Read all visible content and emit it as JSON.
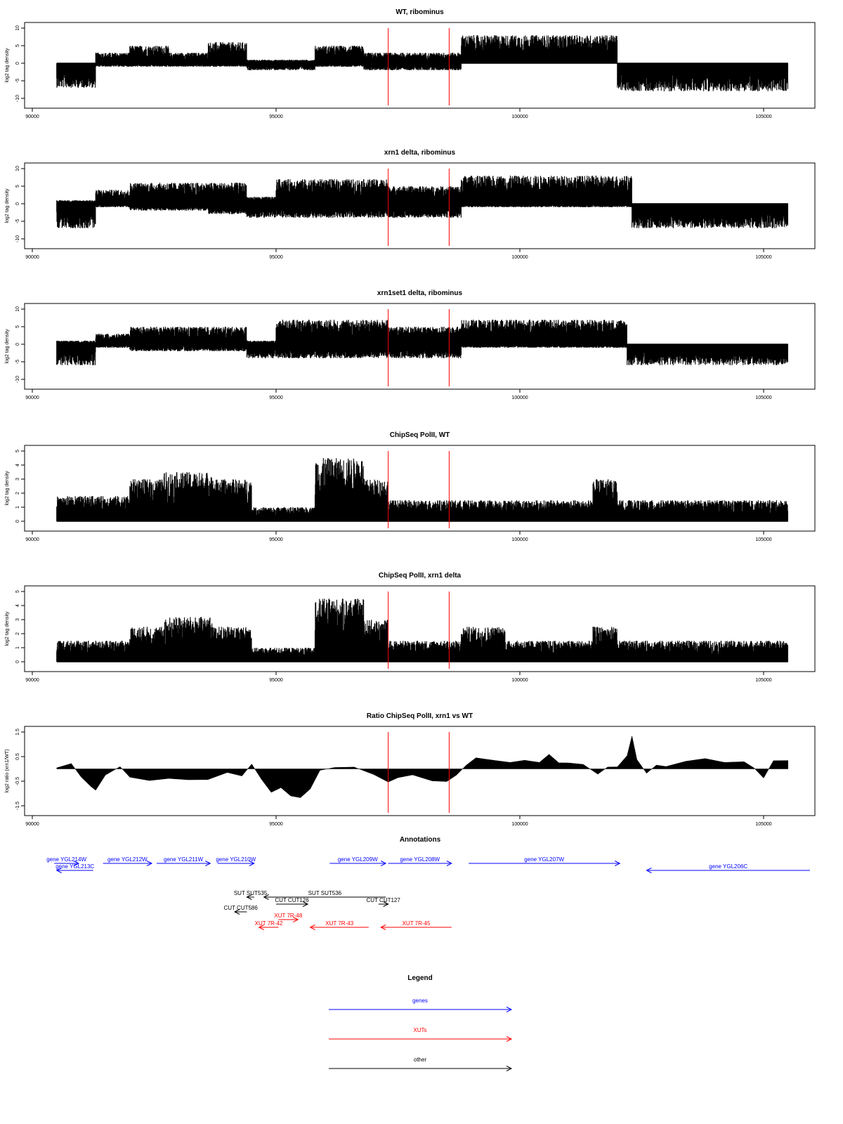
{
  "chart_data": [
    {
      "type": "bar",
      "title": "WT, ribominus",
      "ylabel": "log2 tag density",
      "xlim": [
        90000,
        105500
      ],
      "ylim": [
        -10,
        10
      ],
      "yticks": [
        "-10",
        "-5",
        "0",
        "5",
        "10"
      ],
      "xticks": [
        "90000",
        "95000",
        "100000",
        "105000"
      ],
      "markers": [
        97300,
        98550
      ],
      "profile": [
        {
          "from": 90500,
          "to": 91300,
          "top": 0,
          "bottom": -7
        },
        {
          "from": 91300,
          "to": 92000,
          "top": 3,
          "bottom": -1
        },
        {
          "from": 92000,
          "to": 92800,
          "top": 5,
          "bottom": -1
        },
        {
          "from": 92800,
          "to": 93600,
          "top": 3,
          "bottom": -1
        },
        {
          "from": 93600,
          "to": 94400,
          "top": 6,
          "bottom": -1
        },
        {
          "from": 94400,
          "to": 95800,
          "top": 1,
          "bottom": -2
        },
        {
          "from": 95800,
          "to": 96800,
          "top": 5,
          "bottom": -1
        },
        {
          "from": 96800,
          "to": 98800,
          "top": 3,
          "bottom": -2
        },
        {
          "from": 98800,
          "to": 102000,
          "top": 8,
          "bottom": 0
        },
        {
          "from": 102000,
          "to": 105500,
          "top": 0,
          "bottom": -8
        }
      ]
    },
    {
      "type": "bar",
      "title": "xrn1 delta, ribominus",
      "ylabel": "log2 tag density",
      "xlim": [
        90000,
        105500
      ],
      "ylim": [
        -10,
        10
      ],
      "yticks": [
        "-10",
        "-5",
        "0",
        "5",
        "10"
      ],
      "xticks": [
        "90000",
        "95000",
        "100000",
        "105000"
      ],
      "markers": [
        97300,
        98550
      ],
      "profile": [
        {
          "from": 90500,
          "to": 91300,
          "top": 1,
          "bottom": -7
        },
        {
          "from": 91300,
          "to": 92000,
          "top": 4,
          "bottom": -1
        },
        {
          "from": 92000,
          "to": 93600,
          "top": 6,
          "bottom": -2
        },
        {
          "from": 93600,
          "to": 94400,
          "top": 6,
          "bottom": -3
        },
        {
          "from": 94400,
          "to": 95000,
          "top": 2,
          "bottom": -4
        },
        {
          "from": 95000,
          "to": 97300,
          "top": 7,
          "bottom": -4
        },
        {
          "from": 97300,
          "to": 98800,
          "top": 5,
          "bottom": -4
        },
        {
          "from": 98800,
          "to": 102300,
          "top": 8,
          "bottom": -1
        },
        {
          "from": 102300,
          "to": 105500,
          "top": 0,
          "bottom": -7
        }
      ]
    },
    {
      "type": "bar",
      "title": "xrn1set1 delta, ribominus",
      "ylabel": "log2 tag density",
      "xlim": [
        90000,
        105500
      ],
      "ylim": [
        -10,
        10
      ],
      "yticks": [
        "-10",
        "-5",
        "0",
        "5",
        "10"
      ],
      "xticks": [
        "90000",
        "95000",
        "100000",
        "105000"
      ],
      "markers": [
        97300,
        98550
      ],
      "profile": [
        {
          "from": 90500,
          "to": 91300,
          "top": 1,
          "bottom": -6
        },
        {
          "from": 91300,
          "to": 92000,
          "top": 3,
          "bottom": -1
        },
        {
          "from": 92000,
          "to": 94400,
          "top": 5,
          "bottom": -2
        },
        {
          "from": 94400,
          "to": 95000,
          "top": 1,
          "bottom": -4
        },
        {
          "from": 95000,
          "to": 97300,
          "top": 7,
          "bottom": -4
        },
        {
          "from": 97300,
          "to": 98800,
          "top": 5,
          "bottom": -4
        },
        {
          "from": 98800,
          "to": 102200,
          "top": 7,
          "bottom": -1
        },
        {
          "from": 102200,
          "to": 105500,
          "top": 0,
          "bottom": -6
        }
      ]
    },
    {
      "type": "bar",
      "title": "ChipSeq PolII, WT",
      "ylabel": "log2 tag density",
      "xlim": [
        90000,
        105500
      ],
      "ylim": [
        0,
        5
      ],
      "yticks": [
        "0",
        "1",
        "2",
        "3",
        "4",
        "5"
      ],
      "xticks": [
        "90000",
        "95000",
        "100000",
        "105000"
      ],
      "markers": [
        97300,
        98550
      ],
      "profile": [
        {
          "from": 90500,
          "to": 91300,
          "top": 1.8,
          "bottom": 0
        },
        {
          "from": 91300,
          "to": 92000,
          "top": 1.8,
          "bottom": 0
        },
        {
          "from": 92000,
          "to": 92700,
          "top": 3,
          "bottom": 0
        },
        {
          "from": 92700,
          "to": 93700,
          "top": 3.5,
          "bottom": 0
        },
        {
          "from": 93700,
          "to": 94500,
          "top": 3,
          "bottom": 0
        },
        {
          "from": 94500,
          "to": 95800,
          "top": 1,
          "bottom": 0
        },
        {
          "from": 95800,
          "to": 96800,
          "top": 4.5,
          "bottom": 0
        },
        {
          "from": 96800,
          "to": 97300,
          "top": 3,
          "bottom": 0
        },
        {
          "from": 97300,
          "to": 101500,
          "top": 1.5,
          "bottom": 0
        },
        {
          "from": 101500,
          "to": 102000,
          "top": 3,
          "bottom": 0
        },
        {
          "from": 102000,
          "to": 105500,
          "top": 1.5,
          "bottom": 0
        }
      ]
    },
    {
      "type": "bar",
      "title": "ChipSeq PolII, xrn1 delta",
      "ylabel": "log2 tag density",
      "xlim": [
        90000,
        105500
      ],
      "ylim": [
        0,
        5
      ],
      "yticks": [
        "0",
        "1",
        "2",
        "3",
        "4",
        "5"
      ],
      "xticks": [
        "90000",
        "95000",
        "100000",
        "105000"
      ],
      "markers": [
        97300,
        98550
      ],
      "profile": [
        {
          "from": 90500,
          "to": 91300,
          "top": 1.5,
          "bottom": 0
        },
        {
          "from": 91300,
          "to": 92000,
          "top": 1.5,
          "bottom": 0
        },
        {
          "from": 92000,
          "to": 92700,
          "top": 2.5,
          "bottom": 0
        },
        {
          "from": 92700,
          "to": 93700,
          "top": 3.2,
          "bottom": 0
        },
        {
          "from": 93700,
          "to": 94500,
          "top": 2.5,
          "bottom": 0
        },
        {
          "from": 94500,
          "to": 95800,
          "top": 1,
          "bottom": 0
        },
        {
          "from": 95800,
          "to": 96800,
          "top": 4.5,
          "bottom": 0
        },
        {
          "from": 96800,
          "to": 97300,
          "top": 3,
          "bottom": 0
        },
        {
          "from": 97300,
          "to": 98800,
          "top": 1.5,
          "bottom": 0
        },
        {
          "from": 98800,
          "to": 99700,
          "top": 2.5,
          "bottom": 0
        },
        {
          "from": 99700,
          "to": 101500,
          "top": 1.5,
          "bottom": 0
        },
        {
          "from": 101500,
          "to": 102000,
          "top": 2.5,
          "bottom": 0
        },
        {
          "from": 102000,
          "to": 105500,
          "top": 1.5,
          "bottom": 0
        }
      ]
    },
    {
      "type": "area",
      "title": "Ratio ChipSeq PolII, xrn1 vs WT",
      "ylabel": "log2 ratio (xrn1/WT)",
      "xlim": [
        90000,
        105500
      ],
      "ylim": [
        -1.5,
        1.5
      ],
      "yticks": [
        "-1.5",
        "-0.5",
        "0.5",
        "1.5"
      ],
      "xticks": [
        "90000",
        "95000",
        "100000",
        "105000"
      ],
      "markers": [
        97300,
        98550
      ],
      "x": [
        90500,
        90800,
        91000,
        91200,
        91300,
        91500,
        91800,
        92000,
        92400,
        92800,
        93200,
        93600,
        94000,
        94300,
        94500,
        94700,
        94900,
        95100,
        95300,
        95500,
        95700,
        95900,
        96200,
        96600,
        97000,
        97300,
        97500,
        97800,
        98200,
        98500,
        98700,
        98900,
        99100,
        99300,
        99500,
        99800,
        100100,
        100400,
        100600,
        100800,
        101000,
        101300,
        101600,
        101800,
        102000,
        102200,
        102300,
        102400,
        102600,
        102800,
        103000,
        103400,
        103800,
        104200,
        104600,
        104800,
        105000,
        105200,
        105500
      ],
      "y": [
        0.1,
        0.25,
        -0.3,
        -0.75,
        -0.9,
        -0.2,
        0.1,
        -0.3,
        -0.5,
        -0.4,
        -0.5,
        -0.4,
        -0.2,
        -0.3,
        0.2,
        -0.4,
        -1.0,
        -0.8,
        -1.1,
        -1.2,
        -0.8,
        -0.1,
        0.1,
        0.1,
        -0.2,
        -0.55,
        -0.4,
        -0.3,
        -0.45,
        -0.55,
        -0.2,
        0.2,
        0.5,
        0.35,
        0.4,
        0.3,
        0.4,
        0.3,
        0.6,
        0.2,
        0.3,
        0.2,
        -0.2,
        0.1,
        0.1,
        0.5,
        1.3,
        0.4,
        -0.2,
        0.2,
        0.1,
        0.3,
        0.4,
        0.3,
        0.35,
        0.1,
        -0.4,
        0.3,
        0.3
      ]
    }
  ],
  "annotations": {
    "title": "Annotations",
    "features": [
      {
        "label": "gene YGL214W",
        "category": "genes",
        "start": 90450,
        "end": 90950,
        "dir": "right",
        "row": 0
      },
      {
        "label": "gene YGL213C",
        "category": "genes",
        "start": 90500,
        "end": 91250,
        "dir": "left",
        "row": 1
      },
      {
        "label": "gene YGL212W",
        "category": "genes",
        "start": 91450,
        "end": 92450,
        "dir": "right",
        "row": 0
      },
      {
        "label": "gene YGL211W",
        "category": "genes",
        "start": 92550,
        "end": 93650,
        "dir": "right",
        "row": 0
      },
      {
        "label": "gene YGL210W",
        "category": "genes",
        "start": 93800,
        "end": 94550,
        "dir": "right",
        "row": 0
      },
      {
        "label": "gene YGL209W",
        "category": "genes",
        "start": 96100,
        "end": 97250,
        "dir": "right",
        "row": 0
      },
      {
        "label": "gene YGL208W",
        "category": "genes",
        "start": 97300,
        "end": 98600,
        "dir": "right",
        "row": 0
      },
      {
        "label": "gene YGL207W",
        "category": "genes",
        "start": 98950,
        "end": 102050,
        "dir": "right",
        "row": 0
      },
      {
        "label": "gene YGL206C",
        "category": "genes",
        "start": 102600,
        "end": 105950,
        "dir": "left",
        "row": 1
      },
      {
        "label": "SUT SUT535",
        "category": "other",
        "start": 94400,
        "end": 94550,
        "dir": "left",
        "row": 4
      },
      {
        "label": "SUT SUT536",
        "category": "other",
        "start": 94750,
        "end": 97250,
        "dir": "left",
        "row": 4
      },
      {
        "label": "CUT CUT126",
        "category": "other",
        "start": 95000,
        "end": 95650,
        "dir": "right",
        "row": 5
      },
      {
        "label": "CUT CUT127",
        "category": "other",
        "start": 97100,
        "end": 97300,
        "dir": "right",
        "row": 5
      },
      {
        "label": "CUT CUT586",
        "category": "other",
        "start": 94150,
        "end": 94400,
        "dir": "left",
        "row": 6
      },
      {
        "label": "XUT 7R-48",
        "category": "XUTs",
        "start": 95050,
        "end": 95450,
        "dir": "right",
        "row": 7
      },
      {
        "label": "XUT 7R-42",
        "category": "XUTs",
        "start": 94650,
        "end": 95050,
        "dir": "left",
        "row": 8
      },
      {
        "label": "XUT 7R-43",
        "category": "XUTs",
        "start": 95700,
        "end": 96900,
        "dir": "left",
        "row": 8
      },
      {
        "label": "XUT 7R-45",
        "category": "XUTs",
        "start": 97150,
        "end": 98600,
        "dir": "left",
        "row": 8
      }
    ]
  },
  "legend": {
    "title": "Legend",
    "items": [
      {
        "label": "genes",
        "color": "#0000ff"
      },
      {
        "label": "XUTs",
        "color": "#ff0000"
      },
      {
        "label": "other",
        "color": "#000000"
      }
    ]
  },
  "colors": {
    "data": "#000000",
    "marker": "#ff0000",
    "gene": "#0000ff",
    "xut": "#ff0000",
    "other": "#000000"
  }
}
